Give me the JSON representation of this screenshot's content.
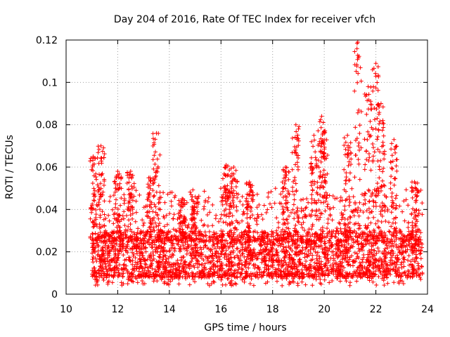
{
  "chart_data": {
    "type": "scatter",
    "title": "Day 204 of 2016, Rate Of TEC Index for receiver vfch",
    "xlabel": "GPS time / hours",
    "ylabel": "ROTI / TECUs",
    "xlim": [
      10,
      24
    ],
    "ylim": [
      0,
      0.12
    ],
    "xticks": [
      10,
      12,
      14,
      16,
      18,
      20,
      22,
      24
    ],
    "xtick_labels": [
      "10",
      "12",
      "14",
      "16",
      "18",
      "20",
      "22",
      "24"
    ],
    "yticks": [
      0,
      0.02,
      0.04,
      0.06,
      0.08,
      0.1,
      0.12
    ],
    "ytick_labels": [
      "0",
      "0.02",
      "0.04",
      "0.06",
      "0.08",
      "0.1",
      "0.12"
    ],
    "grid": true,
    "marker": "plus",
    "color": "#ff0000",
    "series": [
      {
        "name": "ROTI",
        "x_range": [
          11.0,
          23.8
        ],
        "baseline_range": [
          0.008,
          0.03
        ],
        "peaks": [
          {
            "x": 11.05,
            "y": 0.065
          },
          {
            "x": 11.35,
            "y": 0.07
          },
          {
            "x": 12.0,
            "y": 0.058
          },
          {
            "x": 12.5,
            "y": 0.058
          },
          {
            "x": 13.25,
            "y": 0.055
          },
          {
            "x": 13.5,
            "y": 0.076
          },
          {
            "x": 14.5,
            "y": 0.045
          },
          {
            "x": 15.0,
            "y": 0.046
          },
          {
            "x": 16.2,
            "y": 0.061
          },
          {
            "x": 16.5,
            "y": 0.06
          },
          {
            "x": 17.1,
            "y": 0.053
          },
          {
            "x": 18.5,
            "y": 0.06
          },
          {
            "x": 18.9,
            "y": 0.08
          },
          {
            "x": 19.6,
            "y": 0.075
          },
          {
            "x": 19.9,
            "y": 0.084
          },
          {
            "x": 20.0,
            "y": 0.077
          },
          {
            "x": 20.9,
            "y": 0.075
          },
          {
            "x": 21.3,
            "y": 0.119
          },
          {
            "x": 21.7,
            "y": 0.098
          },
          {
            "x": 22.0,
            "y": 0.109
          },
          {
            "x": 22.2,
            "y": 0.09
          },
          {
            "x": 22.7,
            "y": 0.073
          },
          {
            "x": 23.5,
            "y": 0.053
          }
        ]
      }
    ]
  }
}
